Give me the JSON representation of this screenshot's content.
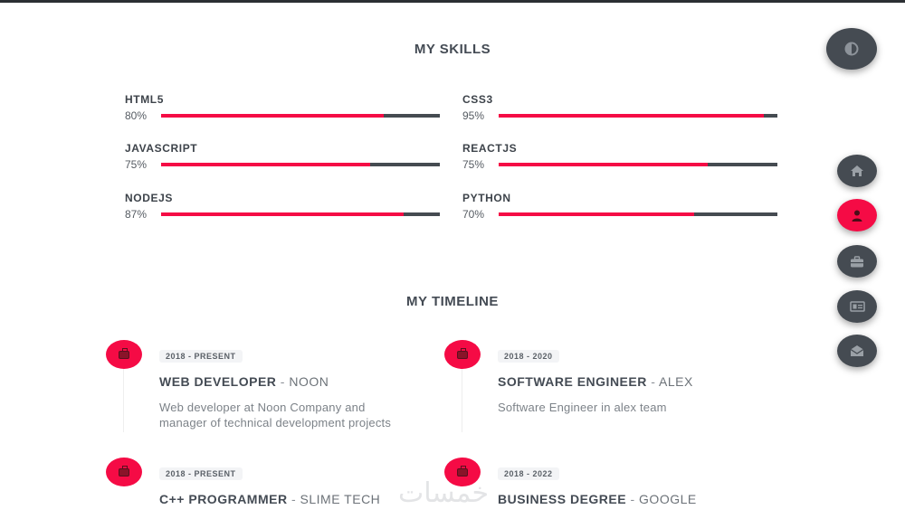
{
  "skills": {
    "title": "MY SKILLS",
    "items": [
      {
        "name": "HTML5",
        "percent_label": "80%",
        "percent": 80
      },
      {
        "name": "CSS3",
        "percent_label": "95%",
        "percent": 95
      },
      {
        "name": "JAVASCRIPT",
        "percent_label": "75%",
        "percent": 75
      },
      {
        "name": "REACTJS",
        "percent_label": "75%",
        "percent": 75
      },
      {
        "name": "NODEJS",
        "percent_label": "87%",
        "percent": 87
      },
      {
        "name": "PYTHON",
        "percent_label": "70%",
        "percent": 70
      }
    ]
  },
  "timeline": {
    "title": "MY TIMELINE",
    "items": [
      {
        "date": "2018 - PRESENT",
        "role": "WEB DEVELOPER",
        "separator": " - ",
        "company": "NOON",
        "description": "Web developer at Noon Company and manager of technical development projects"
      },
      {
        "date": "2018 - 2020",
        "role": "SOFTWARE ENGINEER",
        "separator": " - ",
        "company": "ALEX",
        "description": "Software Engineer in alex team"
      },
      {
        "date": "2018 - PRESENT",
        "role": "C++ PROGRAMMER",
        "separator": " - ",
        "company": "SLIME TECH",
        "description": ""
      },
      {
        "date": "2018 - 2022",
        "role": "BUSINESS DEGREE",
        "separator": " - ",
        "company": "GOOGLE",
        "description": ""
      }
    ]
  },
  "nav": {
    "theme_toggle_icon": "contrast-icon",
    "items": [
      {
        "icon": "home-icon",
        "active": false
      },
      {
        "icon": "user-icon",
        "active": true
      },
      {
        "icon": "briefcase-icon",
        "active": false
      },
      {
        "icon": "id-card-icon",
        "active": false
      },
      {
        "icon": "envelope-icon",
        "active": false
      }
    ]
  },
  "colors": {
    "accent": "#f50b45",
    "dark": "#454b52",
    "text": "#444b54"
  },
  "watermark": "خمسات"
}
